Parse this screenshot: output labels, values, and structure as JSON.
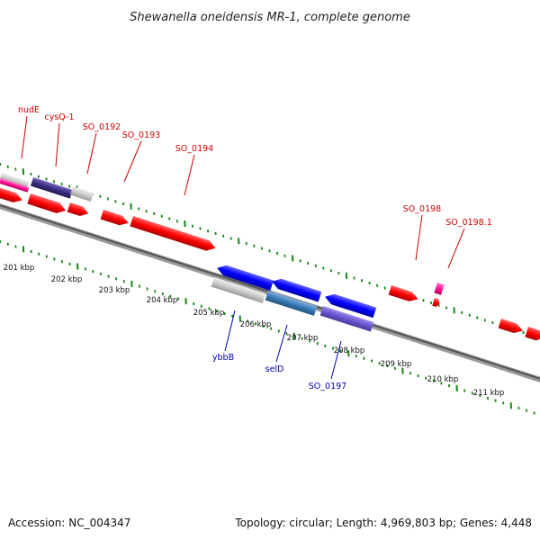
{
  "title": "Shewanella oneidensis MR-1, complete genome",
  "footer": {
    "accession": "Accession: NC_004347",
    "topology": "Topology: circular; Length: 4,969,803 bp; Genes: 4,448"
  },
  "colors": {
    "forward_gene": "#ff0000",
    "reverse_gene": "#0000ff",
    "tick": "#118811",
    "backbone": "#777777",
    "label_forward": "#cc0000",
    "label_reverse": "#0000aa"
  },
  "kbp_labels": [
    "201 kbp",
    "202 kbp",
    "203 kbp",
    "204 kbp",
    "205 kbp",
    "206 kbp",
    "207 kbp",
    "208 kbp",
    "209 kbp",
    "210 kbp",
    "211 kbp"
  ],
  "gene_labels_forward": [
    "nudE",
    "cysQ-1",
    "SO_0192",
    "SO_0193",
    "SO_0194",
    "SO_0198",
    "SO_0198.1"
  ],
  "gene_labels_reverse": [
    "ybbB",
    "selD",
    "SO_0197"
  ]
}
